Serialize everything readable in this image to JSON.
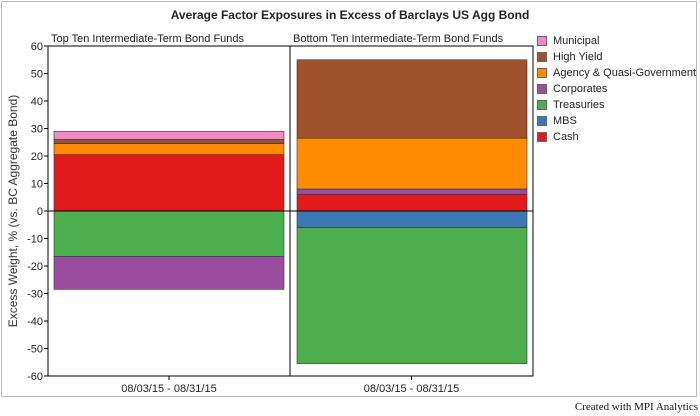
{
  "chart_data": {
    "type": "bar",
    "title": "Average Factor Exposures in Excess of Barclays US Agg Bond",
    "ylabel": "Excess Weight, % (vs. BC Aggregate Bond)",
    "ylim": [
      -60,
      60
    ],
    "yticks": [
      60,
      50,
      40,
      30,
      20,
      10,
      0,
      -10,
      -20,
      -30,
      -40,
      -50,
      -60
    ],
    "panels": [
      {
        "label": "Top Ten Intermediate-Term Bond Funds",
        "category": "08/03/15 - 08/31/15",
        "values": {
          "Municipal": 3,
          "High Yield": 1.5,
          "Agency & Quasi-Government": 4,
          "Corporates": -12,
          "Treasuries": -16.5,
          "MBS": 0,
          "Cash": 20.5
        }
      },
      {
        "label": "Bottom Ten Intermediate-Term Bond Funds",
        "category": "08/03/15 - 08/31/15",
        "values": {
          "Municipal": 0,
          "High Yield": 28.5,
          "Agency & Quasi-Government": 18.5,
          "Corporates": 2,
          "Treasuries": -49.5,
          "MBS": -6,
          "Cash": 6
        }
      }
    ],
    "series": [
      {
        "name": "Municipal",
        "color": "#f089c6"
      },
      {
        "name": "High Yield",
        "color": "#a0522d"
      },
      {
        "name": "Agency & Quasi-Government",
        "color": "#ff8c00"
      },
      {
        "name": "Corporates",
        "color": "#9a4c9e"
      },
      {
        "name": "Treasuries",
        "color": "#4cae4c"
      },
      {
        "name": "MBS",
        "color": "#3a78b4"
      },
      {
        "name": "Cash",
        "color": "#e31a1c"
      }
    ],
    "stack_order_positive": [
      "Cash",
      "Corporates",
      "Agency & Quasi-Government",
      "High Yield",
      "Municipal"
    ],
    "stack_order_negative": [
      "MBS",
      "Treasuries",
      "Corporates"
    ],
    "legend_position": "top-right",
    "grid": false
  },
  "footer": {
    "credit": "Created with MPI Analytics"
  }
}
